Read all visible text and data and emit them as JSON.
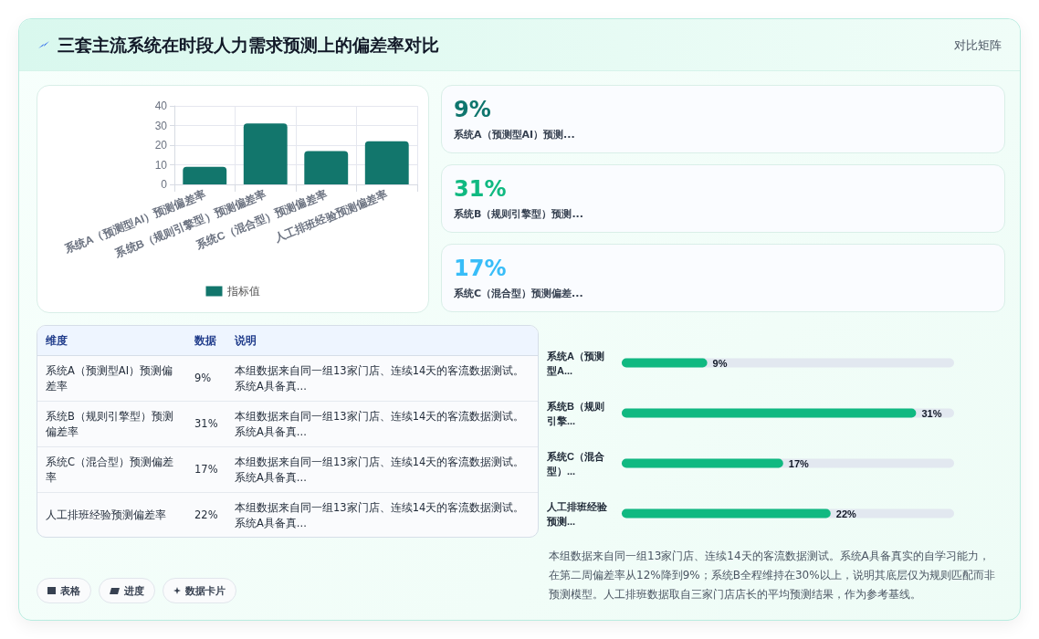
{
  "chart_data": [
    {
      "type": "other",
      "title": "三套主流系统在时段人力需求预测上的偏差率对比",
      "subtitle": "对比矩阵"
    },
    {
      "type": "bar",
      "categories": [
        "系统A（预测型AI）预测偏差率",
        "系统B（规则引擎型）预测偏差率",
        "系统C（混合型）预测偏差率",
        "人工排班经验预测偏差率"
      ],
      "series": [
        {
          "name": "指标值",
          "color": "#12766c",
          "values": [
            9,
            31,
            17,
            22
          ]
        }
      ],
      "ylim": [
        0,
        40
      ],
      "yticks": [
        0,
        10,
        20,
        30,
        40
      ],
      "grid": true,
      "legend": "bottom"
    },
    {
      "type": "other",
      "categories": [
        "系统A（预测型AI）预测...",
        "系统B（规则引擎型）预测...",
        "系统C（混合型）预测偏差..."
      ],
      "value_labels": [
        "9%",
        "31%",
        "17%"
      ]
    },
    {
      "type": "other",
      "categories": [
        "系统A（预测型AI）预测偏差率",
        "系统B（规则引擎型）预测偏差率",
        "系统C（混合型）预测偏差率",
        "人工排班经验预测偏差率"
      ],
      "value_labels": [
        "9%",
        "31%",
        "17%",
        "22%"
      ],
      "annotations": [
        "维度",
        "数据",
        "说明",
        "本组数据来自同一组13家门店、连续14天的客流数据测试。系统A具备真...",
        "本组数据来自同一组13家门店、连续14天的客流数据测试。系统A具备真...",
        "本组数据来自同一组13家门店、连续14天的客流数据测试。系统A具备真...",
        "本组数据来自同一组13家门店、连续14天的客流数据测试。系统A具备真..."
      ]
    },
    {
      "type": "bar",
      "orientation": "horizontal",
      "categories": [
        "系统A（预测型A...",
        "系统B（规则引擎...",
        "系统C（混合型）...",
        "人工排班经验预测..."
      ],
      "series": [
        {
          "color": "#10b981",
          "values": [
            9,
            31,
            17,
            22
          ],
          "value_labels": [
            "9%",
            "31%",
            "17%",
            "22%"
          ]
        }
      ],
      "annotations": [
        "本组数据来自同一组13家门店、连续14天的客流数据测试。系统A具备真实的自学习能力，在第二周偏差率从12%降到9%；系统B全程维持在30%以上，说明其底层仅为规则匹配而非预测模型。人工排班数据取自三家门店店长的平均预测结果，作为参考基线。"
      ]
    },
    {
      "type": "other",
      "annotations": [
        "表格",
        "进度",
        "数据卡片"
      ]
    }
  ]
}
